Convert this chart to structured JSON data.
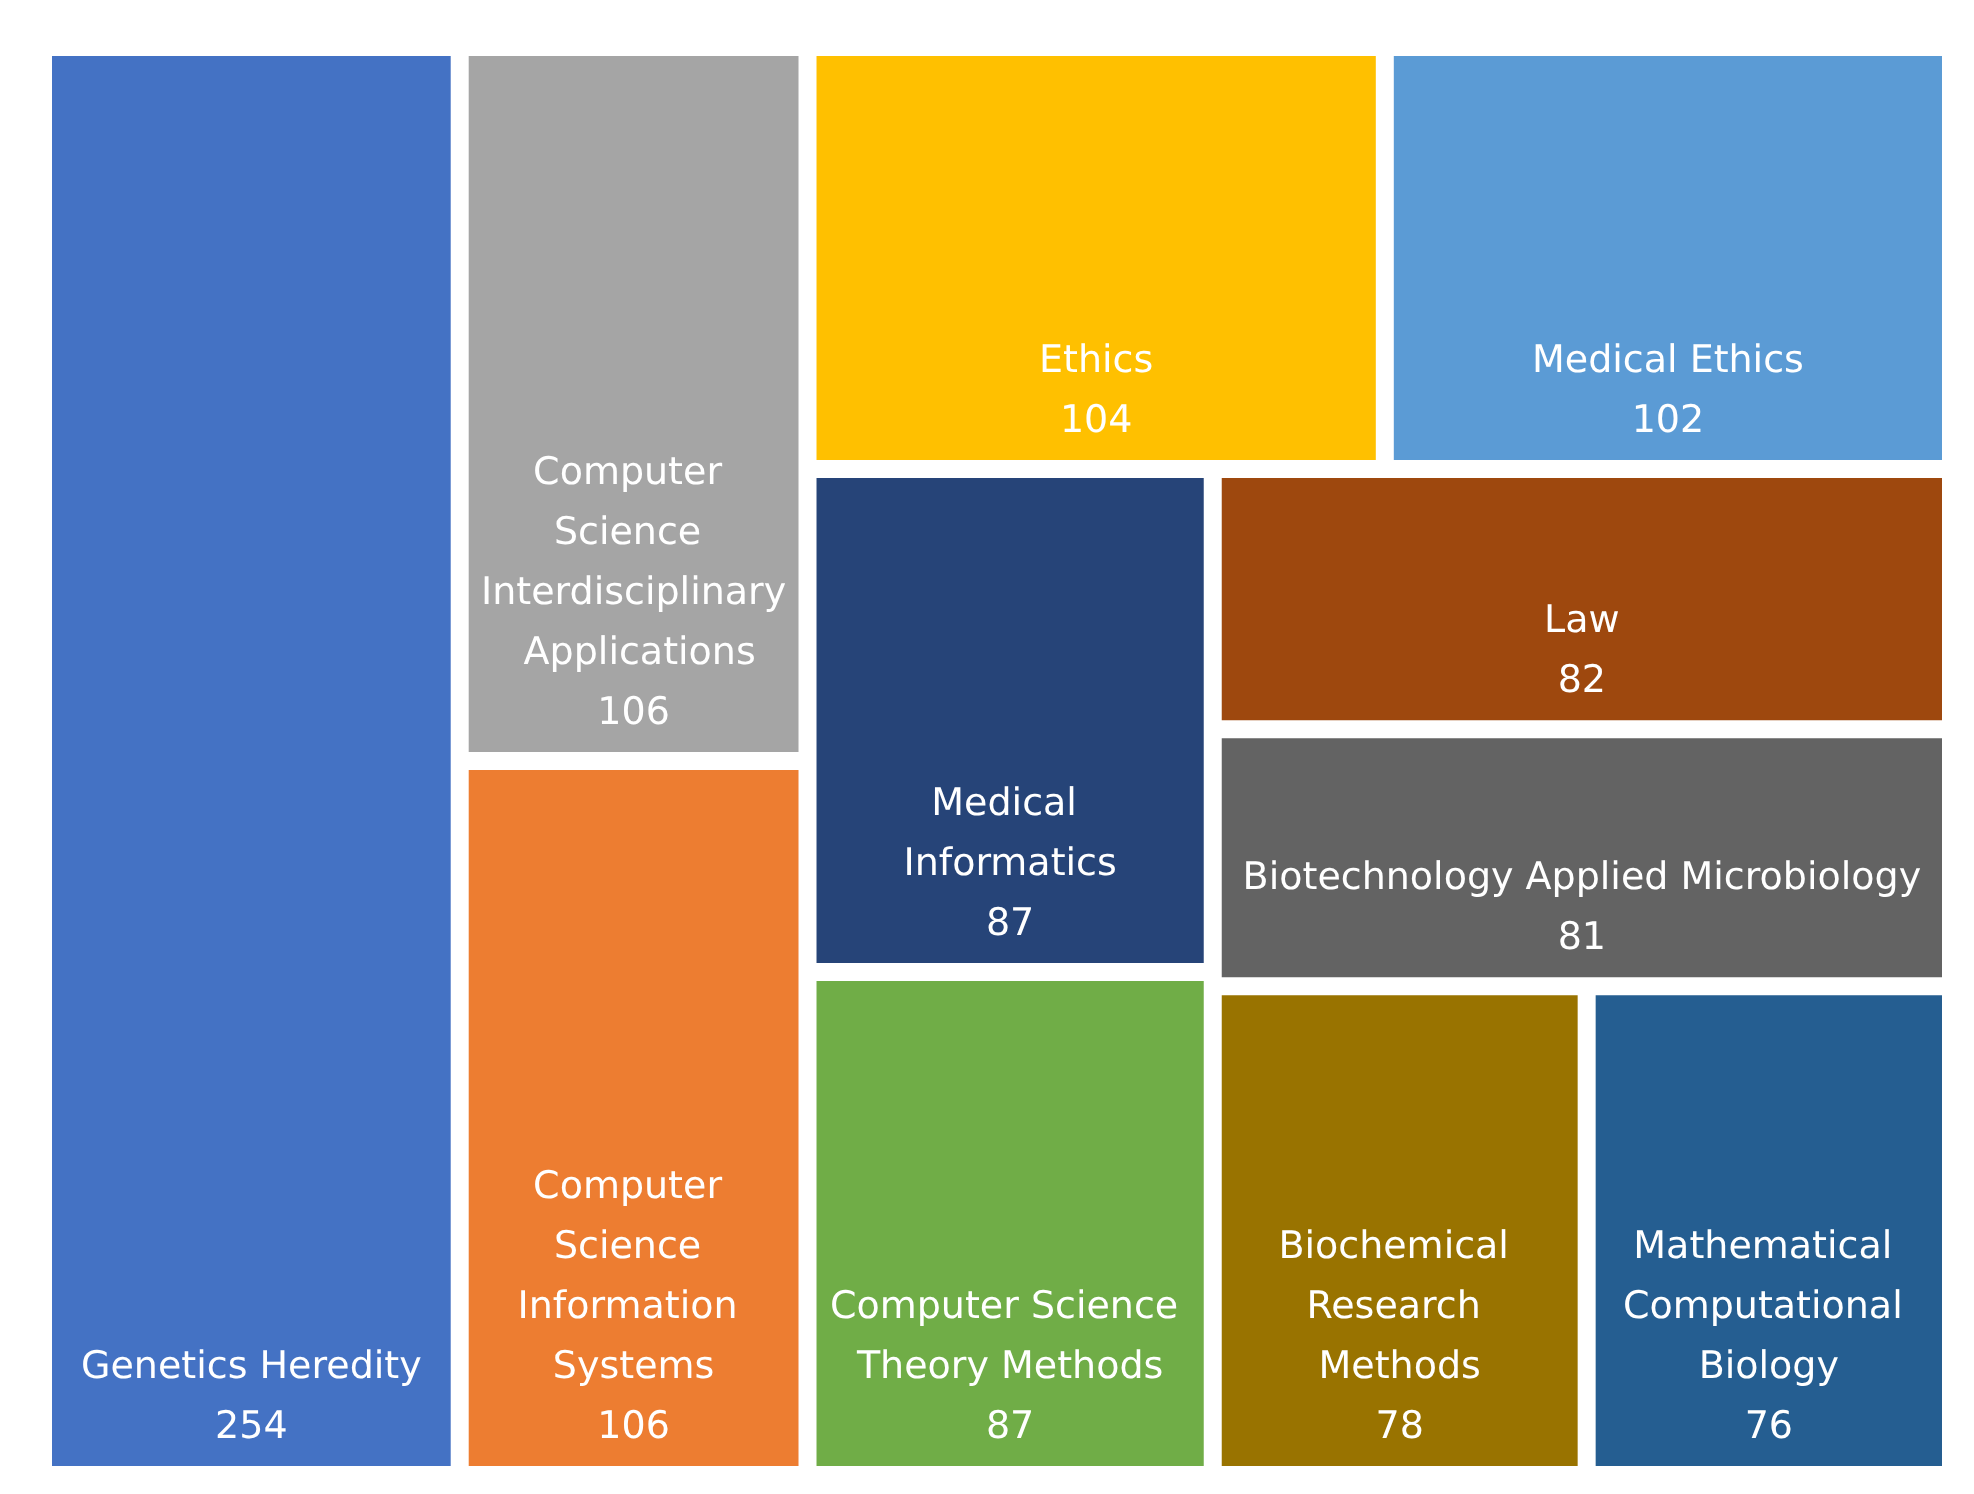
{
  "chart_data": {
    "type": "other",
    "categories": [
      "Genetics Heredity",
      "Computer Science Information Systems",
      "Computer Science Interdisciplinary Applications",
      "Ethics",
      "Medical Ethics",
      "Computer Science Theory Methods",
      "Medical Informatics",
      "Law",
      "Biotechnology Applied Microbiology",
      "Biochemical Research Methods",
      "Mathematical Computational Biology"
    ],
    "values": [
      254,
      106,
      106,
      104,
      102,
      87,
      87,
      82,
      81,
      78,
      76
    ],
    "colors": [
      "#4472c4",
      "#ed7d31",
      "#a5a5a5",
      "#ffc000",
      "#5b9bd5",
      "#70ad47",
      "#264478",
      "#9e480e",
      "#636363",
      "#997300",
      "#255e91"
    ],
    "data_labels": true
  }
}
